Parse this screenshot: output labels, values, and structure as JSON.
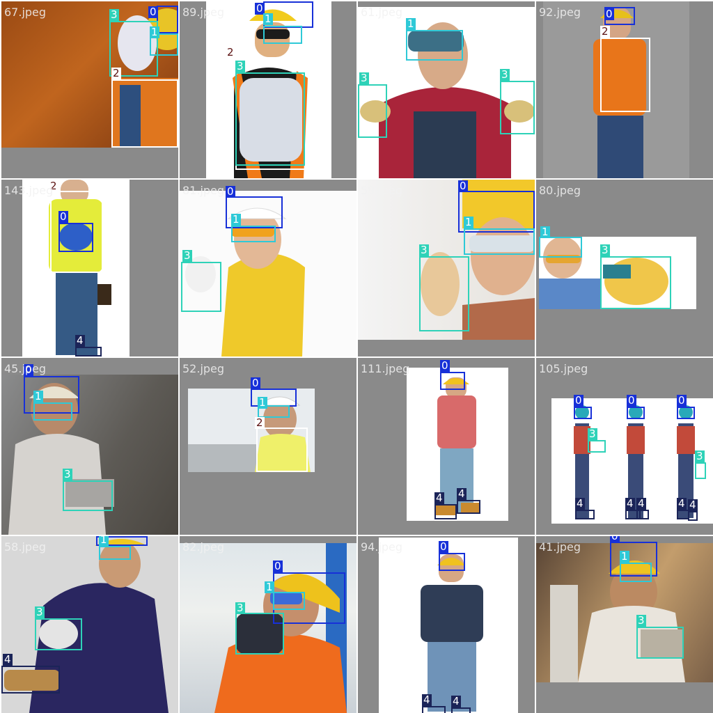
{
  "tiles": [
    {
      "file": "67.jpeg",
      "boxes": [
        {
          "cls": "0"
        },
        {
          "cls": "1"
        },
        {
          "cls": "3"
        },
        {
          "cls": "2"
        }
      ]
    },
    {
      "file": "89.jpeg",
      "boxes": [
        {
          "cls": "0"
        },
        {
          "cls": "1"
        },
        {
          "cls": "2"
        },
        {
          "cls": "3"
        }
      ]
    },
    {
      "file": "61.jpeg",
      "boxes": [
        {
          "cls": "1"
        },
        {
          "cls": "3"
        },
        {
          "cls": "3"
        }
      ]
    },
    {
      "file": "92.jpeg",
      "boxes": [
        {
          "cls": "0"
        },
        {
          "cls": "2"
        }
      ]
    },
    {
      "file": "143.jpeg",
      "boxes": [
        {
          "cls": "2"
        },
        {
          "cls": "0"
        },
        {
          "cls": "4"
        }
      ]
    },
    {
      "file": "81.jpeg",
      "boxes": [
        {
          "cls": "0"
        },
        {
          "cls": "1"
        },
        {
          "cls": "3"
        }
      ]
    },
    {
      "file": "59.jpeg",
      "boxes": [
        {
          "cls": "0"
        },
        {
          "cls": "1"
        },
        {
          "cls": "3"
        }
      ]
    },
    {
      "file": "80.jpeg",
      "boxes": [
        {
          "cls": "1"
        },
        {
          "cls": "3"
        }
      ]
    },
    {
      "file": "45.jpeg",
      "boxes": [
        {
          "cls": "0"
        },
        {
          "cls": "1"
        },
        {
          "cls": "3"
        }
      ]
    },
    {
      "file": "52.jpeg",
      "boxes": [
        {
          "cls": "0"
        },
        {
          "cls": "1"
        },
        {
          "cls": "2"
        }
      ]
    },
    {
      "file": "111.jpeg",
      "boxes": [
        {
          "cls": "0"
        },
        {
          "cls": "4"
        },
        {
          "cls": "4"
        }
      ]
    },
    {
      "file": "105.jpeg",
      "boxes": [
        {
          "cls": "0"
        },
        {
          "cls": "0"
        },
        {
          "cls": "0"
        },
        {
          "cls": "3"
        },
        {
          "cls": "3"
        },
        {
          "cls": "4"
        },
        {
          "cls": "4"
        },
        {
          "cls": "4"
        },
        {
          "cls": "4"
        },
        {
          "cls": "4"
        }
      ]
    },
    {
      "file": "58.jpeg",
      "boxes": [
        {
          "cls": "0"
        },
        {
          "cls": "1"
        },
        {
          "cls": "3"
        },
        {
          "cls": "4"
        }
      ]
    },
    {
      "file": "82.jpeg",
      "boxes": [
        {
          "cls": "0"
        },
        {
          "cls": "1"
        },
        {
          "cls": "3"
        }
      ]
    },
    {
      "file": "94.jpeg",
      "boxes": [
        {
          "cls": "0"
        },
        {
          "cls": "4"
        },
        {
          "cls": "4"
        }
      ]
    },
    {
      "file": "41.jpeg",
      "boxes": [
        {
          "cls": "0"
        },
        {
          "cls": "1"
        },
        {
          "cls": "3"
        }
      ]
    }
  ],
  "colors": {
    "class_0": "#1730d8",
    "class_1": "#2ec9d7",
    "class_2": "#ffffff",
    "class_3": "#2ed2b8",
    "class_4": "#1b2458"
  }
}
